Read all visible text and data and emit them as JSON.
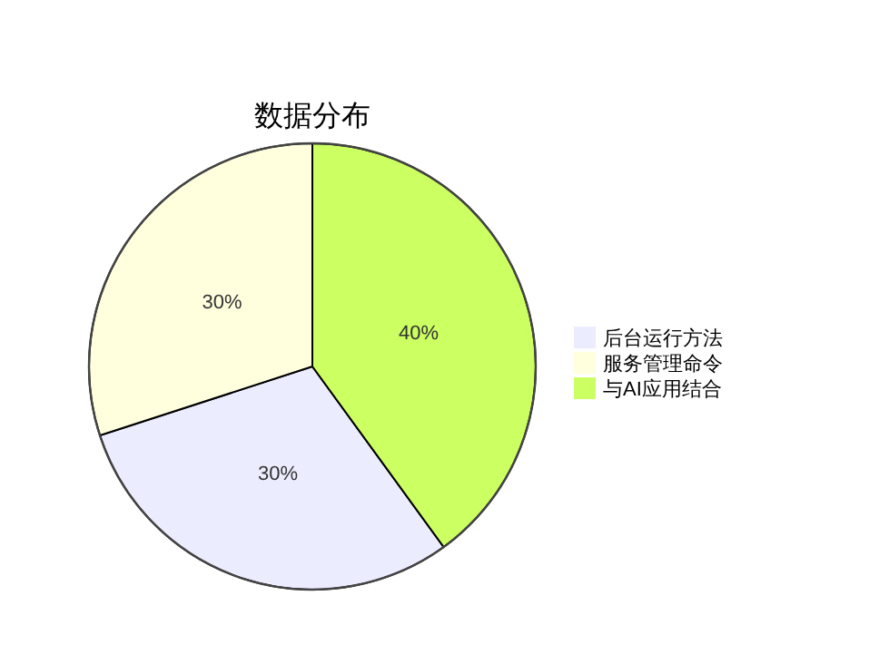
{
  "chart_data": {
    "type": "pie",
    "title": "数据分布",
    "categories": [
      "后台运行方法",
      "服务管理命令",
      "与AI应用结合"
    ],
    "values": [
      30,
      30,
      40
    ],
    "colors": [
      "#ececff",
      "#ffffde",
      "#cbff62"
    ],
    "legend": "right",
    "value_labels": [
      "30%",
      "30%",
      "40%"
    ]
  }
}
